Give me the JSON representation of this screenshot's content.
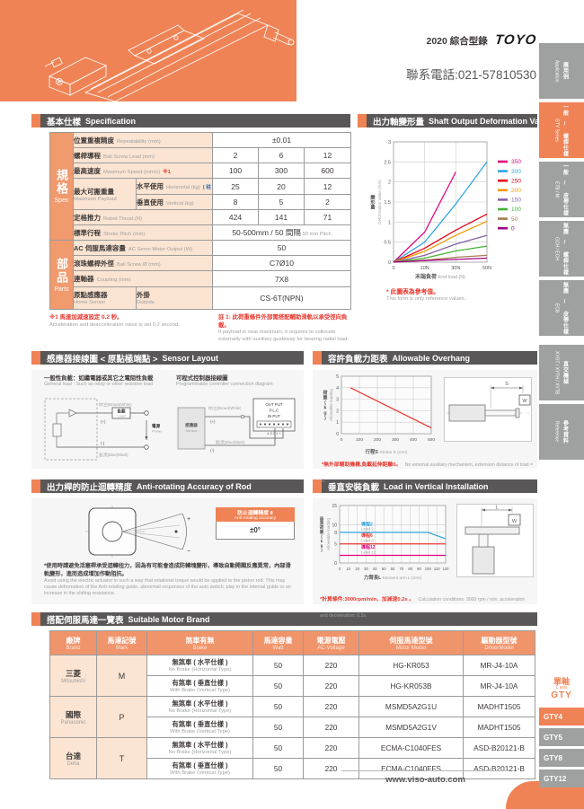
{
  "header": {
    "catalog": "2020 綜合型錄",
    "logo": "TOYO",
    "phone": "聯系電話:021-57810530"
  },
  "colors": {
    "accent_orange": "#ef8355",
    "bar_gray": "#595757",
    "tab_gray": "#9fa0a0",
    "note_red": "#e8382f"
  },
  "sidebar": {
    "tabs": [
      {
        "zh": "應用例",
        "en": "Application",
        "active": false
      },
      {
        "zh": "一般 / 螺桿仕樣",
        "en": "GTY Series",
        "active": true
      },
      {
        "zh": "一般 / 皮帶仕樣",
        "en": "ETB / M",
        "active": false
      },
      {
        "zh": "無塵 / 螺桿仕樣",
        "en": "GCH / ECH",
        "active": false
      },
      {
        "zh": "無塵 / 皮帶仕樣",
        "en": "ECB",
        "active": false
      },
      {
        "zh": "直交機械",
        "en": "XYGT / XYTH / XYTB",
        "active": false
      },
      {
        "zh": "參考資料",
        "en": "Reference",
        "active": false
      }
    ],
    "series_nav": {
      "zh": "單軸",
      "en": "1 axis",
      "series": "GTY",
      "items": [
        {
          "label": "GTY4",
          "active": true
        },
        {
          "label": "GTY5",
          "active": false
        },
        {
          "label": "GTY8",
          "active": false
        },
        {
          "label": "GTY12",
          "active": false
        }
      ]
    }
  },
  "sections": {
    "spec": {
      "zh": "基本仕樣",
      "en": "Specification"
    },
    "deform": {
      "zh": "出力軸變形量",
      "en": "Shaft Output Deformation Value"
    },
    "sensor": {
      "zh": "感應器接線圖 < 原點極端點 >",
      "en": "Sensor Layout"
    },
    "overhang": {
      "zh": "容許負載力距表",
      "en": "Allowable Overhang"
    },
    "antirot": {
      "zh": "出力桿的防止迴轉精度",
      "en": "Anti-rotating Accuracy of Rod"
    },
    "vertical": {
      "zh": "垂直安裝負載",
      "en": "Load in Vertical Installation"
    },
    "motor": {
      "zh": "搭配伺服馬達一覽表",
      "en": "Suitable Motor Brand"
    }
  },
  "spec_table": {
    "side_spec": {
      "zh": "規格",
      "en": "Spec"
    },
    "side_parts": {
      "zh": "部品",
      "en": "Parts"
    },
    "rows": [
      {
        "zh": "位置重複精度",
        "en": "Repeatability (mm)",
        "values": [
          "±0.01"
        ]
      },
      {
        "zh": "螺桿導程",
        "en": "Ball Screw Lead (mm)",
        "values": [
          "2",
          "6",
          "12"
        ]
      },
      {
        "zh": "最高速度",
        "en": "Maximum Speed (mm/s)",
        "mark": "※1",
        "values": [
          "100",
          "300",
          "600"
        ]
      },
      {
        "zh": "最大可搬重量",
        "en": "Maximum Payload",
        "subrows": [
          {
            "zh": "水平使用",
            "en": "Horizontal (kg)",
            "mark": "( 註 1)",
            "values": [
              "25",
              "20",
              "12"
            ]
          },
          {
            "zh": "垂直使用",
            "en": "Vertical (kg)",
            "values": [
              "8",
              "5",
              "2"
            ]
          }
        ]
      },
      {
        "zh": "定格推力",
        "en": "Rated Thrust (N)",
        "values": [
          "424",
          "141",
          "71"
        ]
      },
      {
        "zh": "標準行程",
        "en": "Stroke Pitch (mm)",
        "values": [
          "50-500mm / 50 間隔"
        ],
        "value_suffix": "50 mm Pitch"
      },
      {
        "zh": "AC 伺服馬達容量",
        "en": "AC Servo Motor Output (W)",
        "values": [
          "50"
        ]
      },
      {
        "zh": "滾珠螺桿外徑",
        "en": "Ball Screw Ø (mm)",
        "values": [
          "C7Ø10"
        ]
      },
      {
        "zh": "連軸器",
        "en": "Coupling (mm)",
        "values": [
          "7X8"
        ]
      },
      {
        "zh": "原點感應器",
        "en": "Home Sensor",
        "sub": {
          "zh": "外掛",
          "en": "Outside"
        },
        "values": [
          "CS-6T(NPN)"
        ]
      }
    ],
    "note_left": {
      "zh": "※1 馬達加減速設定 0.2 秒。",
      "en": "Acceleration and deacceleration value is set 0.2 second."
    },
    "note_right": {
      "zh": "註 1: 此荷重條件外部需搭配輔助滑軌以承受徑向負載。",
      "en": "If payload is near maximum, it requires to collocate externally with auxiliary guideway for bearing radial load."
    }
  },
  "sensor_diagrams": {
    "left_title_zh": "一般性負載：如繼電器或其它之電阻性負載",
    "left_title_en": "General load : Such as relay or other resistive load",
    "right_title_zh": "可程式控制器接線圖",
    "right_title_en": "Programmable controller connection diagram",
    "labels": {
      "brown": "棕(白)Brown(White)",
      "plus": "(+)",
      "minus": "(-)",
      "blue": "藍(黑)Blue(Black)",
      "load_zh": "負載",
      "load_en": "Load",
      "power_zh": "電源",
      "power_en": "Power",
      "sensor_zh": "感應器",
      "sensor_en": "Sensor",
      "plc1": "OUT PUT",
      "plc2": "P.L.C",
      "plc3": "IN PUT",
      "terminals": "4 3 2 1 +"
    }
  },
  "antirot": {
    "box_zh": "防止迴轉精度 θ",
    "box_en": "Anti-rotating accuracy",
    "value": "±0°",
    "plus": "+",
    "minus": "−",
    "note_zh": "*使用時請避免活塞桿承受迴轉扭力，因為有可能會造成防轉塊變形，導致自動開關反應異常，內部滑軌變形，進而造成增加作動阻抗。",
    "note_en": "Avoid using the electric actuator in such a way that rotational torque would be applied to the piston rod. This may cause deformation of the Anti-rotating guide, abnormal responses of the auto switch, play in the internal guide or an increase in the sliding resistance."
  },
  "motor_table": {
    "headers": [
      {
        "zh": "廠牌",
        "en": "Brand"
      },
      {
        "zh": "馬達記號",
        "en": "Mark"
      },
      {
        "zh": "煞車有無",
        "en": "Brake"
      },
      {
        "zh": "馬達容量",
        "en": "Watt"
      },
      {
        "zh": "電源電壓",
        "en": "AC-Voltage"
      },
      {
        "zh": "伺服馬達型號",
        "en": "Motor Model"
      },
      {
        "zh": "驅動器型號",
        "en": "DriverModel"
      }
    ],
    "brands": [
      {
        "zh": "三菱",
        "en": "Mitsubishi",
        "mark": "M",
        "rows": [
          {
            "brake_zh": "無煞車 ( 水平仕樣 )",
            "brake_en": "No Brake (Horizontal Type)",
            "watt": "50",
            "voltage": "220",
            "motor": "HG-KR053",
            "driver": "MR-J4-10A"
          },
          {
            "brake_zh": "有煞車 ( 垂直仕樣 )",
            "brake_en": "With Brake (Vertical Type)",
            "watt": "50",
            "voltage": "220",
            "motor": "HG-KR053B",
            "driver": "MR-J4-10A"
          }
        ]
      },
      {
        "zh": "國際",
        "en": "Panasonic",
        "mark": "P",
        "rows": [
          {
            "brake_zh": "無煞車 ( 水平仕樣 )",
            "brake_en": "No Brake (Horizontal Type)",
            "watt": "50",
            "voltage": "220",
            "motor": "MSMD5A2G1U",
            "driver": "MADHT1505"
          },
          {
            "brake_zh": "有煞車 ( 垂直仕樣 )",
            "brake_en": "With Brake (Vertical Type)",
            "watt": "50",
            "voltage": "220",
            "motor": "MSMD5A2G1V",
            "driver": "MADHT1505"
          }
        ]
      },
      {
        "zh": "台達",
        "en": "Delta",
        "mark": "T",
        "rows": [
          {
            "brake_zh": "無煞車 ( 水平仕樣 )",
            "brake_en": "No Brake (Horizontal Type)",
            "watt": "50",
            "voltage": "220",
            "motor": "ECMA-C1040FES",
            "driver": "ASD-B20121-B"
          },
          {
            "brake_zh": "有煞車 ( 垂直仕樣 )",
            "brake_en": "With Brake (Vertical Type)",
            "watt": "50",
            "voltage": "220",
            "motor": "ECMA-C1040FFS",
            "driver": "ASD-B20121-B"
          }
        ]
      }
    ]
  },
  "chart_data": [
    {
      "id": "deformation",
      "type": "line",
      "title_zh": "出力軸變形量",
      "title_en": "Shaft Output Deformation Value",
      "x_mode": "category",
      "x_labels": [
        "0",
        "10N",
        "30N",
        "50N"
      ],
      "xlabel_zh": "末端負荷",
      "xlabel_en": "End load (N)",
      "ylabel_zh": "變形量",
      "ylabel_en": "Deformation Value (mm)",
      "ylim": [
        0,
        3
      ],
      "yticks": [
        0,
        0.5,
        1,
        1.5,
        2,
        2.5,
        3
      ],
      "legend_position": "right",
      "series": [
        {
          "name": "350",
          "color": "#e4007f",
          "values": [
            0,
            0.75,
            2.25,
            null
          ]
        },
        {
          "name": "300",
          "color": "#2ca6e0",
          "values": [
            0,
            0.5,
            1.45,
            2.5
          ]
        },
        {
          "name": "250",
          "color": "#e60012",
          "values": [
            0,
            0.35,
            0.8,
            1.2
          ]
        },
        {
          "name": "200",
          "color": "#f39800",
          "values": [
            0,
            0.27,
            0.67,
            1.02
          ]
        },
        {
          "name": "150",
          "color": "#8760a8",
          "values": [
            0,
            0.17,
            0.45,
            0.67
          ]
        },
        {
          "name": "100",
          "color": "#45b035",
          "values": [
            0,
            0.1,
            0.28,
            0.4
          ]
        },
        {
          "name": "50",
          "color": "#a67c52",
          "values": [
            0,
            0.05,
            0.12,
            0.17
          ]
        },
        {
          "name": "0",
          "color": "#a40081",
          "values": [
            0,
            0.04,
            0.07,
            0.1
          ]
        }
      ],
      "note_zh": "* 此圖表為參考值。",
      "note_en": "This form is only reference values."
    },
    {
      "id": "overhang",
      "type": "line",
      "title_zh": "容許負載力距表",
      "title_en": "Allowable Overhang",
      "xlim": [
        0,
        500
      ],
      "xticks": [
        0,
        100,
        200,
        300,
        400,
        500
      ],
      "ylim": [
        0,
        5
      ],
      "yticks": [
        0,
        1,
        2,
        3,
        4,
        5
      ],
      "xlabel_zh": "行程S",
      "xlabel_en": "Stroke S (mm)",
      "ylabel_zh": "荷重(kg)",
      "ylabel_en": "Allowable loading",
      "series": [
        {
          "name": "allowable-load",
          "color": "#e8382f",
          "points": [
            [
              50,
              4
            ],
            [
              500,
              0.5
            ]
          ]
        }
      ],
      "diagram": {
        "dim": "S",
        "load": "W"
      },
      "note_zh": "*無外部輔助機構,負載延伸距離0。",
      "note_en": "No external auxiliary mechanism, extension distance of load = 0."
    },
    {
      "id": "vertical-load",
      "type": "line",
      "title_zh": "垂直安裝負載",
      "title_en": "Load in Vertical Installation",
      "xlim": [
        0,
        120
      ],
      "xticks": [
        0,
        10,
        20,
        30,
        40,
        50,
        60,
        70,
        80,
        90,
        100,
        110,
        120
      ],
      "ylim": [
        0,
        15
      ],
      "yticks": [
        5,
        8,
        10,
        15
      ],
      "xlabel_zh": "力臂長L",
      "xlabel_en": "Moment arm L (mm)",
      "ylabel_zh": "垂直荷重(kg)",
      "ylabel_en": "Allowable loading",
      "series": [
        {
          "name_zh": "導程2",
          "name_en": "Lead 2",
          "color": "#2ca6e0",
          "points": [
            [
              0,
              8
            ],
            [
              100,
              8
            ],
            [
              120,
              6.3
            ]
          ]
        },
        {
          "name_zh": "導程6",
          "name_en": "Lead 6",
          "color": "#e8382f",
          "points": [
            [
              0,
              5
            ],
            [
              120,
              5
            ]
          ]
        },
        {
          "name_zh": "導程12",
          "name_en": "Lead 12",
          "color": "#e4007f",
          "points": [
            [
              0,
              2
            ],
            [
              120,
              2
            ]
          ]
        }
      ],
      "diagram": {
        "dim": "L",
        "load": "W"
      },
      "note_zh": "*計算條件:3000rpm/min，加減速0.2s 。",
      "note_en": "Calculation conditions: 3000 rpm / min, acceleration and deceleration: 0.2s."
    }
  ],
  "footer": {
    "url": "www.viso-auto.com"
  }
}
